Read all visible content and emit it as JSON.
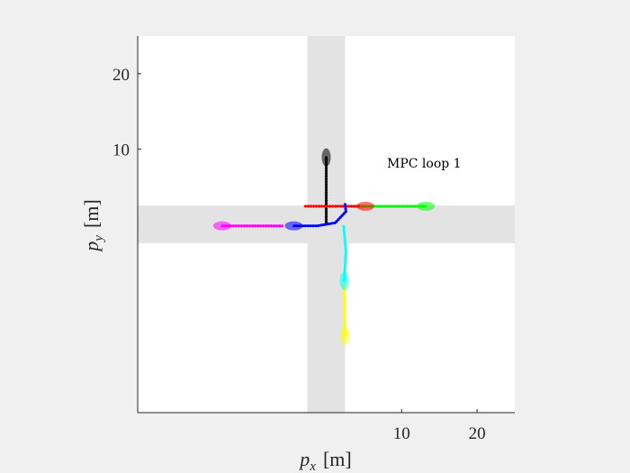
{
  "chart_data": {
    "type": "scatter",
    "title": "",
    "annotation": "MPC loop 1",
    "xlabel": {
      "var": "p",
      "sub": "x",
      "unit": "[m]"
    },
    "ylabel": {
      "var": "p",
      "sub": "y",
      "unit": "[m]"
    },
    "xlim": [
      -25,
      25
    ],
    "ylim": [
      -25,
      25
    ],
    "xticks": [
      10,
      20
    ],
    "yticks": [
      10,
      20
    ],
    "roads": [
      {
        "orientation": "vertical",
        "from": -2.5,
        "to": 2.5,
        "color": "#e3e3e3"
      },
      {
        "orientation": "horizontal",
        "from": -2.5,
        "to": 2.5,
        "color": "#e3e3e3"
      }
    ],
    "series": [
      {
        "color": "#000000",
        "points": [
          [
            0,
            0.2
          ],
          [
            0,
            8.9
          ]
        ],
        "marker": [
          0,
          8.9
        ]
      },
      {
        "color": "#ff0000",
        "points": [
          [
            -2.8,
            2.4
          ],
          [
            5.2,
            2.4
          ]
        ],
        "marker": [
          5.2,
          2.4
        ]
      },
      {
        "color": "#00ff00",
        "points": [
          [
            4.6,
            2.4
          ],
          [
            13.2,
            2.4
          ]
        ],
        "marker": [
          13.2,
          2.4
        ]
      },
      {
        "color": "#ff00ff",
        "points": [
          [
            -13.8,
            -0.2
          ],
          [
            -5.8,
            -0.2
          ]
        ],
        "marker": [
          -13.8,
          -0.2
        ]
      },
      {
        "color": "#0000ff",
        "points": [
          [
            -4.3,
            -0.2
          ],
          [
            -1.2,
            -0.2
          ],
          [
            1.2,
            0.2
          ],
          [
            2.6,
            1.7
          ],
          [
            2.5,
            2.7
          ]
        ],
        "marker": [
          -4.3,
          -0.2
        ]
      },
      {
        "color": "#00ffff",
        "points": [
          [
            2.3,
            -0.2
          ],
          [
            2.6,
            -3.5
          ],
          [
            2.4,
            -7.5
          ]
        ],
        "marker": [
          2.4,
          -7.5
        ]
      },
      {
        "color": "#ffff00",
        "points": [
          [
            2.4,
            -7.8
          ],
          [
            2.5,
            -14.8
          ]
        ],
        "marker": [
          2.5,
          -14.8
        ]
      }
    ]
  }
}
